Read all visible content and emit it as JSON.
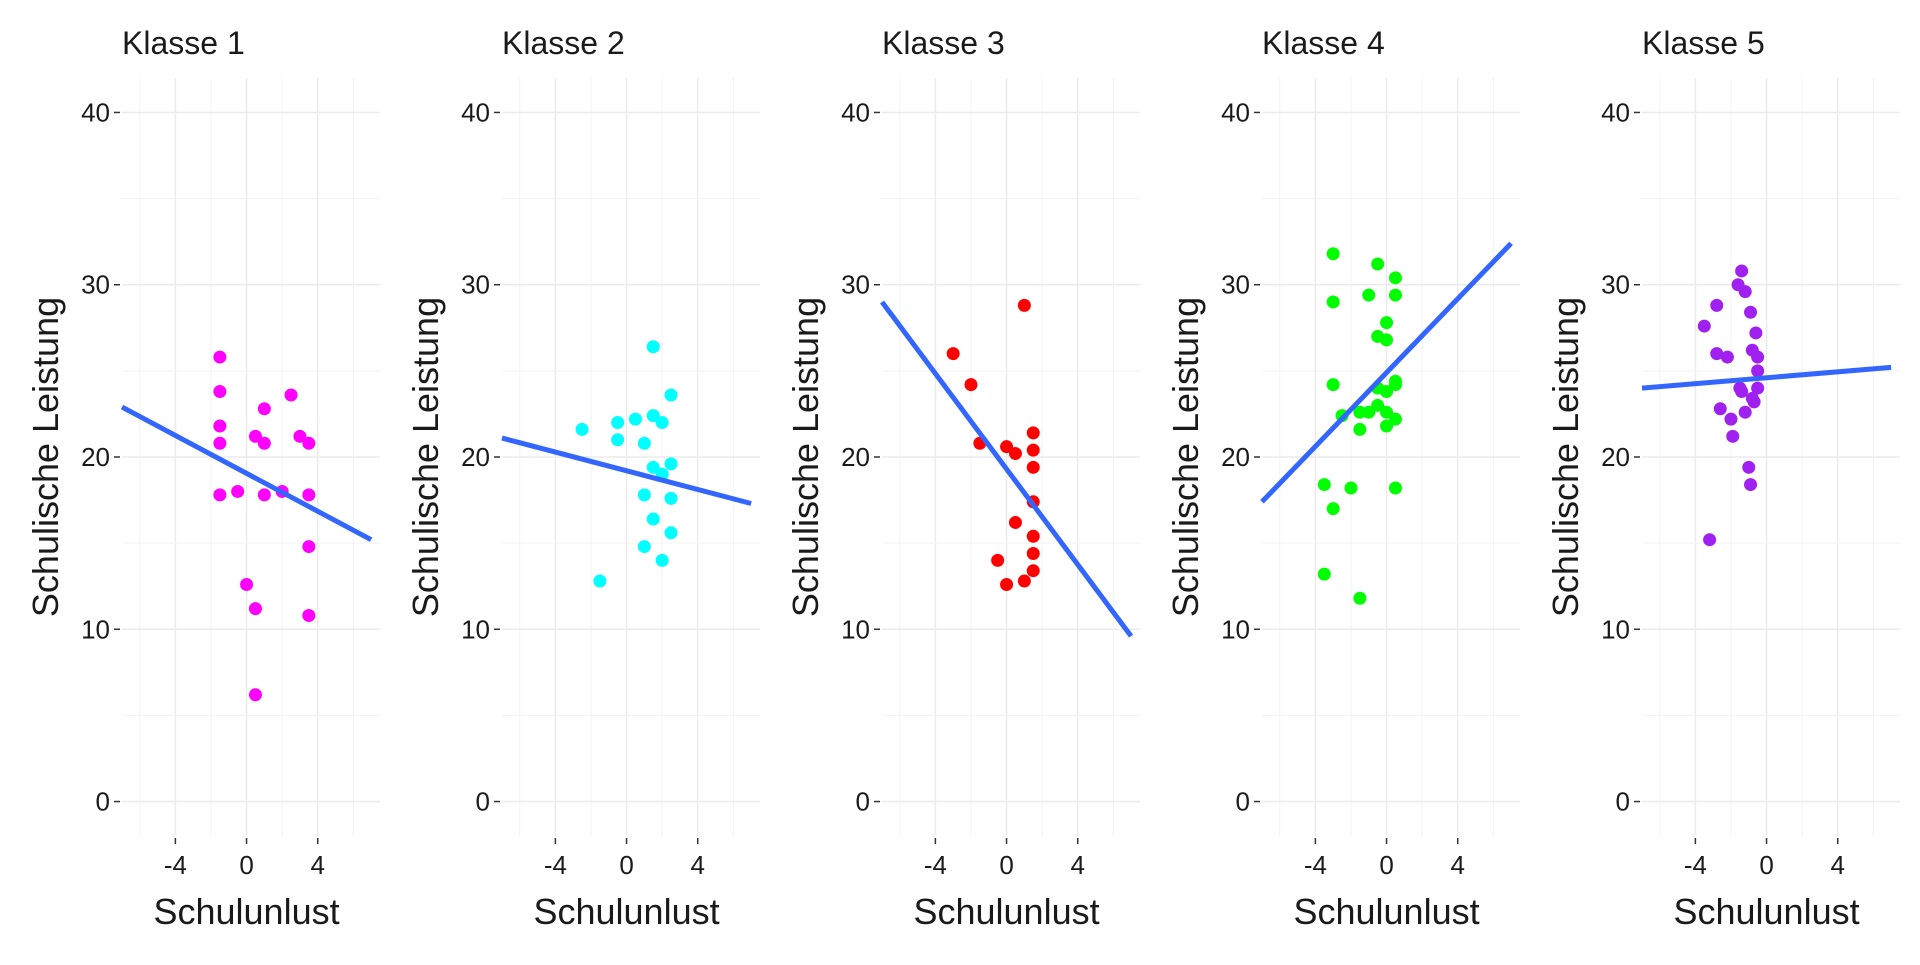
{
  "chart_data": [
    {
      "type": "scatter",
      "title": "Klasse 1",
      "xlabel": "Schulunlust",
      "ylabel": "Schulische Leistung",
      "xlim": [
        -7,
        7.5
      ],
      "ylim": [
        -2,
        42
      ],
      "xticks": [
        -4,
        0,
        4
      ],
      "yticks": [
        0,
        10,
        20,
        30,
        40
      ],
      "grid": true,
      "color": "#FF00FF",
      "points": [
        {
          "x": -1.5,
          "y": 25.8
        },
        {
          "x": -1.5,
          "y": 23.8
        },
        {
          "x": -1.5,
          "y": 21.8
        },
        {
          "x": -1.5,
          "y": 20.8
        },
        {
          "x": -1.5,
          "y": 17.8
        },
        {
          "x": -0.5,
          "y": 18.0
        },
        {
          "x": 0,
          "y": 12.6
        },
        {
          "x": 0.5,
          "y": 21.2
        },
        {
          "x": 0.5,
          "y": 11.2
        },
        {
          "x": 0.5,
          "y": 6.2
        },
        {
          "x": 1,
          "y": 22.8
        },
        {
          "x": 1,
          "y": 20.8
        },
        {
          "x": 1,
          "y": 17.8
        },
        {
          "x": 2,
          "y": 18.0
        },
        {
          "x": 2.5,
          "y": 23.6
        },
        {
          "x": 3,
          "y": 21.2
        },
        {
          "x": 3.5,
          "y": 20.8
        },
        {
          "x": 3.5,
          "y": 17.8
        },
        {
          "x": 3.5,
          "y": 14.8
        },
        {
          "x": 3.5,
          "y": 10.8
        }
      ],
      "trend": {
        "x": [
          -7,
          7
        ],
        "y": [
          22.9,
          15.2
        ]
      }
    },
    {
      "type": "scatter",
      "title": "Klasse 2",
      "xlabel": "Schulunlust",
      "ylabel": "Schulische Leistung",
      "xlim": [
        -7,
        7.5
      ],
      "ylim": [
        -2,
        42
      ],
      "xticks": [
        -4,
        0,
        4
      ],
      "yticks": [
        0,
        10,
        20,
        30,
        40
      ],
      "grid": true,
      "color": "#00FFFF",
      "points": [
        {
          "x": -2.5,
          "y": 21.6
        },
        {
          "x": -1.5,
          "y": 12.8
        },
        {
          "x": -0.5,
          "y": 22.0
        },
        {
          "x": -0.5,
          "y": 21.0
        },
        {
          "x": 0.5,
          "y": 22.2
        },
        {
          "x": 1,
          "y": 20.8
        },
        {
          "x": 1,
          "y": 17.8
        },
        {
          "x": 1,
          "y": 14.8
        },
        {
          "x": 1.5,
          "y": 26.4
        },
        {
          "x": 1.5,
          "y": 22.4
        },
        {
          "x": 1.5,
          "y": 19.4
        },
        {
          "x": 1.5,
          "y": 16.4
        },
        {
          "x": 2,
          "y": 22.0
        },
        {
          "x": 2,
          "y": 19.0
        },
        {
          "x": 2,
          "y": 14.0
        },
        {
          "x": 2.5,
          "y": 23.6
        },
        {
          "x": 2.5,
          "y": 19.6
        },
        {
          "x": 2.5,
          "y": 17.6
        },
        {
          "x": 2.5,
          "y": 15.6
        }
      ],
      "trend": {
        "x": [
          -7,
          7
        ],
        "y": [
          21.1,
          17.3
        ]
      }
    },
    {
      "type": "scatter",
      "title": "Klasse 3",
      "xlabel": "Schulunlust",
      "ylabel": "Schulische Leistung",
      "xlim": [
        -7,
        7.5
      ],
      "ylim": [
        -2,
        42
      ],
      "xticks": [
        -4,
        0,
        4
      ],
      "yticks": [
        0,
        10,
        20,
        30,
        40
      ],
      "grid": true,
      "color": "#FF0000",
      "points": [
        {
          "x": -3,
          "y": 26.0
        },
        {
          "x": -2,
          "y": 24.2
        },
        {
          "x": -1.5,
          "y": 20.8
        },
        {
          "x": -0.5,
          "y": 14.0
        },
        {
          "x": 0,
          "y": 20.6
        },
        {
          "x": 0,
          "y": 12.6
        },
        {
          "x": 0.5,
          "y": 20.2
        },
        {
          "x": 0.5,
          "y": 16.2
        },
        {
          "x": 1,
          "y": 28.8
        },
        {
          "x": 1,
          "y": 12.8
        },
        {
          "x": 1.5,
          "y": 21.4
        },
        {
          "x": 1.5,
          "y": 20.4
        },
        {
          "x": 1.5,
          "y": 19.4
        },
        {
          "x": 1.5,
          "y": 17.4
        },
        {
          "x": 1.5,
          "y": 15.4
        },
        {
          "x": 1.5,
          "y": 14.4
        },
        {
          "x": 1.5,
          "y": 13.4
        }
      ],
      "trend": {
        "x": [
          -7,
          7
        ],
        "y": [
          29.0,
          9.6
        ]
      }
    },
    {
      "type": "scatter",
      "title": "Klasse 4",
      "xlabel": "Schulunlust",
      "ylabel": "Schulische Leistung",
      "xlim": [
        -7,
        7.5
      ],
      "ylim": [
        -2,
        42
      ],
      "xticks": [
        -4,
        0,
        4
      ],
      "yticks": [
        0,
        10,
        20,
        30,
        40
      ],
      "grid": true,
      "color": "#00FF00",
      "points": [
        {
          "x": -3.5,
          "y": 18.4
        },
        {
          "x": -3.5,
          "y": 13.2
        },
        {
          "x": -3,
          "y": 31.8
        },
        {
          "x": -3,
          "y": 29.0
        },
        {
          "x": -3,
          "y": 24.2
        },
        {
          "x": -3,
          "y": 17.0
        },
        {
          "x": -2.5,
          "y": 22.4
        },
        {
          "x": -2,
          "y": 18.2
        },
        {
          "x": -1.5,
          "y": 22.6
        },
        {
          "x": -1.5,
          "y": 21.6
        },
        {
          "x": -1.5,
          "y": 11.8
        },
        {
          "x": -1,
          "y": 29.4
        },
        {
          "x": -1,
          "y": 22.6
        },
        {
          "x": -0.5,
          "y": 31.2
        },
        {
          "x": -0.5,
          "y": 27.0
        },
        {
          "x": -0.5,
          "y": 24.0
        },
        {
          "x": -0.5,
          "y": 23.0
        },
        {
          "x": 0,
          "y": 27.8
        },
        {
          "x": 0,
          "y": 26.8
        },
        {
          "x": 0,
          "y": 23.8
        },
        {
          "x": 0,
          "y": 21.8
        },
        {
          "x": 0,
          "y": 22.6
        },
        {
          "x": 0.5,
          "y": 30.4
        },
        {
          "x": 0.5,
          "y": 29.4
        },
        {
          "x": 0.5,
          "y": 24.4
        },
        {
          "x": 0.5,
          "y": 24.2
        },
        {
          "x": 0.5,
          "y": 22.2
        },
        {
          "x": 0.5,
          "y": 18.2
        }
      ],
      "trend": {
        "x": [
          -7,
          7
        ],
        "y": [
          17.4,
          32.4
        ]
      }
    },
    {
      "type": "scatter",
      "title": "Klasse 5",
      "xlabel": "Schulunlust",
      "ylabel": "Schulische Leistung",
      "xlim": [
        -7,
        7.5
      ],
      "ylim": [
        -2,
        42
      ],
      "xticks": [
        -4,
        0,
        4
      ],
      "yticks": [
        0,
        10,
        20,
        30,
        40
      ],
      "grid": true,
      "color": "#A020F0",
      "points": [
        {
          "x": -3.5,
          "y": 27.6
        },
        {
          "x": -3.2,
          "y": 15.2
        },
        {
          "x": -2.8,
          "y": 28.8
        },
        {
          "x": -2.8,
          "y": 26.0
        },
        {
          "x": -2.6,
          "y": 22.8
        },
        {
          "x": -2.2,
          "y": 25.8
        },
        {
          "x": -2.0,
          "y": 22.2
        },
        {
          "x": -1.9,
          "y": 21.2
        },
        {
          "x": -1.6,
          "y": 30.0
        },
        {
          "x": -1.5,
          "y": 24.0
        },
        {
          "x": -1.4,
          "y": 30.8
        },
        {
          "x": -1.4,
          "y": 23.8
        },
        {
          "x": -1.2,
          "y": 29.6
        },
        {
          "x": -1.2,
          "y": 22.6
        },
        {
          "x": -1.0,
          "y": 19.4
        },
        {
          "x": -0.9,
          "y": 28.4
        },
        {
          "x": -0.9,
          "y": 18.4
        },
        {
          "x": -0.8,
          "y": 26.2
        },
        {
          "x": -0.8,
          "y": 23.4
        },
        {
          "x": -0.6,
          "y": 27.2
        },
        {
          "x": -0.5,
          "y": 25.8
        },
        {
          "x": -0.5,
          "y": 25.0
        },
        {
          "x": -0.5,
          "y": 24.0
        },
        {
          "x": -0.7,
          "y": 23.2
        }
      ],
      "trend": {
        "x": [
          -7,
          7
        ],
        "y": [
          24.0,
          25.2
        ]
      }
    }
  ]
}
